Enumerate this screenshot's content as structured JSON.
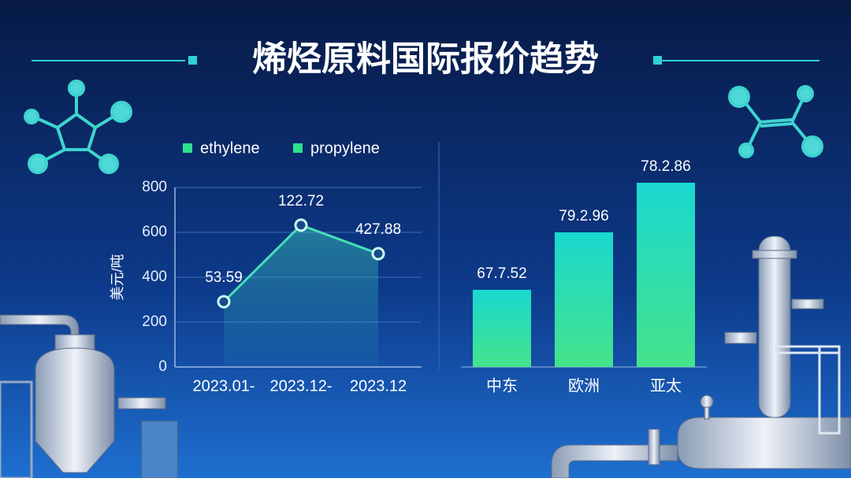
{
  "title": "烯烃原料国际报价趋势",
  "chart_data": [
    {
      "type": "line",
      "legend": [
        {
          "name": "ethylene",
          "color": "#2fe08e"
        },
        {
          "name": "propylene",
          "color": "#2fe08e"
        }
      ],
      "ylabel": "美元/吨",
      "categories": [
        "2023.01-",
        "2023.12-",
        "2023.12"
      ],
      "values": [
        291,
        632,
        505
      ],
      "annotations": [
        "53.59",
        "122.72",
        "427.88"
      ],
      "color": "#44e0b8",
      "ylim": [
        0,
        800
      ],
      "yticks": [
        0,
        200,
        400,
        600,
        800
      ],
      "grid": true
    },
    {
      "type": "bar",
      "categories": [
        "中东",
        "欧洲",
        "亚太"
      ],
      "values": [
        344,
        600,
        821
      ],
      "annotations": [
        "67.7.52",
        "79.2.96",
        "78.2.86"
      ],
      "ylim": [
        0,
        800
      ]
    }
  ]
}
